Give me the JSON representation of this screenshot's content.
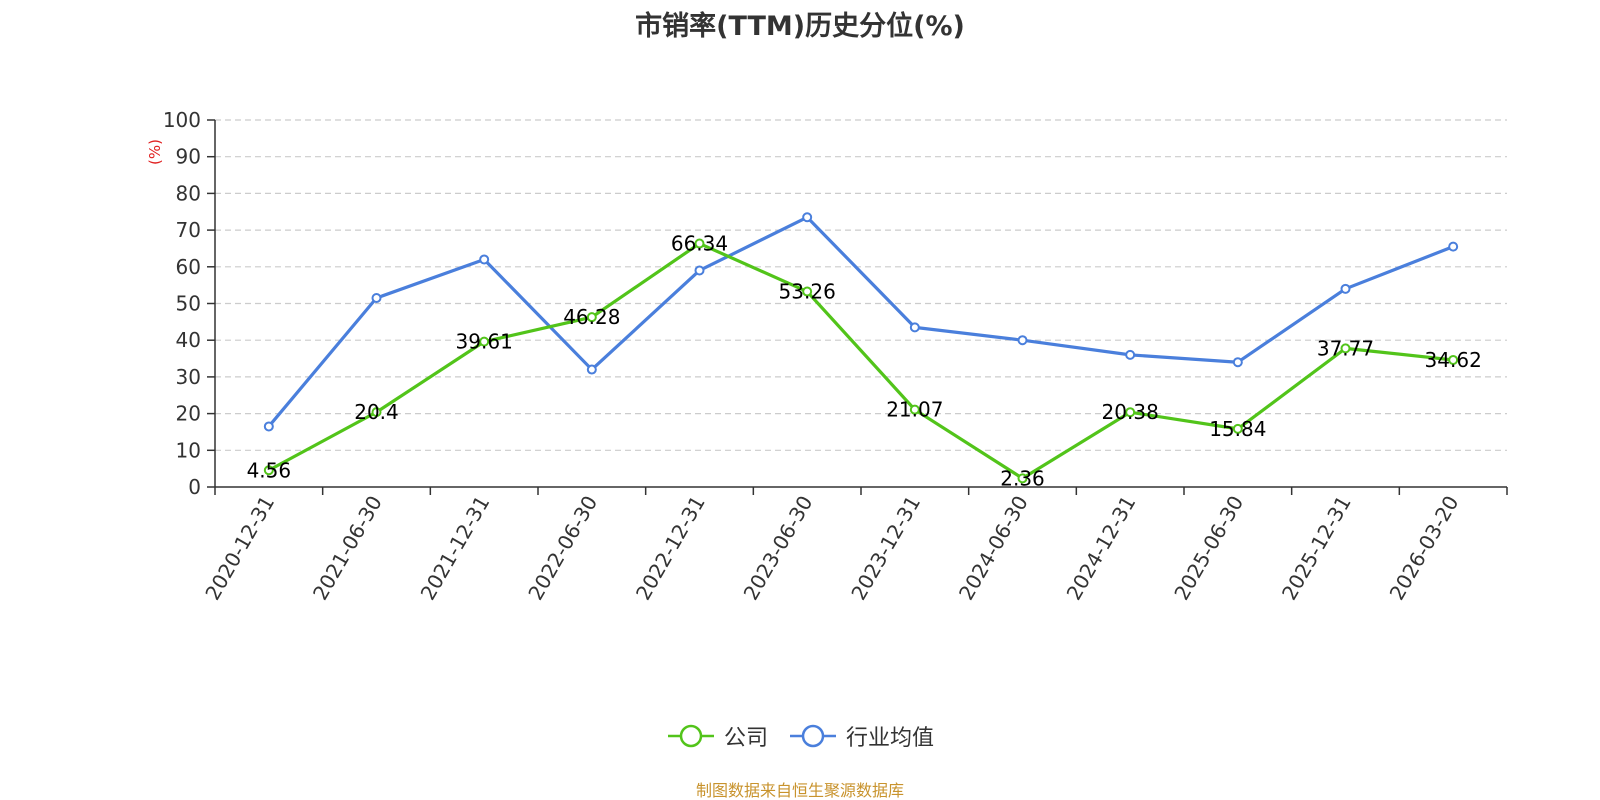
{
  "chart_data": {
    "type": "line",
    "title": "市销率(TTM)历史分位(%)",
    "ylabel": "(%)",
    "xlabel": "",
    "ylim": [
      0,
      100
    ],
    "yticks": [
      0,
      10,
      20,
      30,
      40,
      50,
      60,
      70,
      80,
      90,
      100
    ],
    "grid": true,
    "legend_position": "bottom",
    "categories": [
      "2020-12-31",
      "2021-06-30",
      "2021-12-31",
      "2022-06-30",
      "2022-12-31",
      "2023-06-30",
      "2023-12-31",
      "2024-06-30",
      "2024-12-31",
      "2025-06-30",
      "2025-12-31",
      "2026-03-20"
    ],
    "series": [
      {
        "name": "公司",
        "color": "#52c41a",
        "show_labels": true,
        "values": [
          4.56,
          20.4,
          39.61,
          46.28,
          66.34,
          53.26,
          21.07,
          2.36,
          20.38,
          15.84,
          37.77,
          34.62
        ]
      },
      {
        "name": "行业均值",
        "color": "#4a7fdc",
        "show_labels": false,
        "values": [
          16.5,
          51.5,
          62,
          32,
          59,
          73.5,
          43.5,
          40,
          36,
          34,
          54,
          65.5
        ]
      }
    ]
  },
  "footer": {
    "source": "制图数据来自恒生聚源数据库",
    "source_color": "#c8932d"
  },
  "unit_color": "#e02020"
}
